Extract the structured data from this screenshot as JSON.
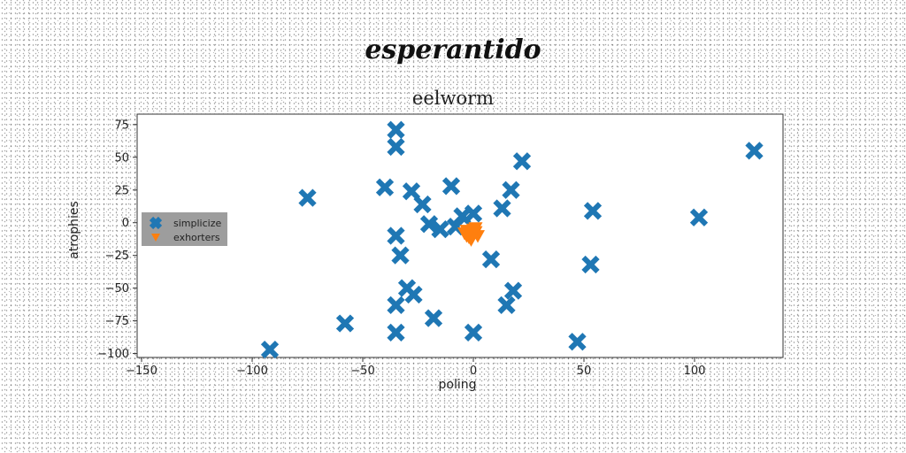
{
  "chart_data": {
    "type": "scatter",
    "suptitle": "esperantido",
    "title": "eelworm",
    "xlabel": "poling",
    "ylabel": "atrophies",
    "xlim": [
      -152,
      140
    ],
    "ylim": [
      -103,
      83
    ],
    "xticks": [
      -150,
      -100,
      -50,
      0,
      50,
      100
    ],
    "yticks": [
      75,
      50,
      25,
      0,
      -25,
      -50,
      -75,
      -100
    ],
    "legend_position": "center-left",
    "grid": false,
    "series": [
      {
        "name": "simplicize",
        "marker": "x",
        "color": "#1f77b4",
        "points": [
          [
            -92,
            -97
          ],
          [
            -75,
            19
          ],
          [
            -58,
            -77
          ],
          [
            -40,
            27
          ],
          [
            -35,
            71
          ],
          [
            -35,
            58
          ],
          [
            -35,
            -10
          ],
          [
            -33,
            -25
          ],
          [
            -35,
            -63
          ],
          [
            -35,
            -84
          ],
          [
            -30,
            -50
          ],
          [
            -27,
            -55
          ],
          [
            -28,
            24
          ],
          [
            -23,
            14
          ],
          [
            -20,
            -1
          ],
          [
            -15,
            -5
          ],
          [
            -18,
            -73
          ],
          [
            -10,
            28
          ],
          [
            -8,
            -3
          ],
          [
            -5,
            5
          ],
          [
            0,
            7
          ],
          [
            0,
            -84
          ],
          [
            8,
            -28
          ],
          [
            13,
            11
          ],
          [
            17,
            25
          ],
          [
            22,
            47
          ],
          [
            15,
            -63
          ],
          [
            18,
            -52
          ],
          [
            47,
            -91
          ],
          [
            53,
            -32
          ],
          [
            54,
            9
          ],
          [
            102,
            4
          ],
          [
            127,
            55
          ]
        ]
      },
      {
        "name": "exhorters",
        "marker": "v",
        "color": "#ff7f0e",
        "points": [
          [
            -3,
            -6
          ],
          [
            -1,
            -9
          ],
          [
            1,
            -7
          ],
          [
            -2,
            -11
          ],
          [
            0,
            -5
          ],
          [
            -4,
            -8
          ],
          [
            2,
            -10
          ],
          [
            -1,
            -13
          ],
          [
            1,
            -4
          ],
          [
            -3,
            -10
          ]
        ]
      }
    ]
  }
}
